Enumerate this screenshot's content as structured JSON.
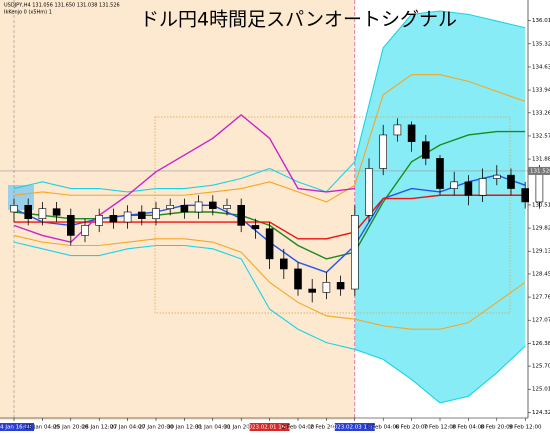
{
  "chart_data": {
    "type": "candlestick",
    "title": "ドル円4時間足スパンオートシグナル",
    "header": [
      "USDJPY,H4 131.056 131.650 131.038 131.526",
      "IkKenjo 0 (x5Hm) 1"
    ],
    "categories": [
      "24 Jan 16:00",
      "25 Jan 04:00",
      "25 Jan 20:00",
      "26 Jan 12:00",
      "27 Jan 04:00",
      "27 Jan 20:00",
      "30 Jan 12:00",
      "31 Jan 04:00",
      "31 Jan 20:00",
      "2023.02.01 16:00",
      "2 Feb 04:00",
      "2 Feb 20:00",
      "2023.02.03 16:00",
      "6 Feb 04:00",
      "6 Feb 20:00",
      "7 Feb 12:00",
      "8 Feb 04:00",
      "8 Feb 20:00",
      "9 Feb 12:00"
    ],
    "category_label_colors": [
      "#2a3fd6",
      null,
      null,
      null,
      null,
      null,
      null,
      null,
      null,
      "#d62a2a",
      null,
      null,
      "#2a3fd6",
      null,
      null,
      null,
      null,
      null,
      null
    ],
    "candles": {
      "open": [
        130.3,
        130.5,
        130.1,
        130.4,
        130.2,
        129.6,
        129.9,
        130.2,
        130.0,
        130.3,
        130.1,
        130.4,
        130.5,
        130.3,
        130.6,
        130.4,
        130.5,
        129.9,
        129.8,
        128.9,
        128.6,
        128.0,
        127.9,
        128.2,
        128.0,
        130.2,
        131.6,
        132.6,
        132.9,
        132.4,
        131.9,
        131.0,
        131.2,
        130.8,
        131.3,
        131.4,
        131.0,
        130.6
      ],
      "high": [
        130.7,
        130.7,
        130.6,
        130.6,
        130.4,
        130.1,
        130.4,
        130.4,
        130.5,
        130.5,
        130.6,
        130.7,
        130.7,
        130.8,
        130.8,
        130.7,
        130.7,
        130.1,
        130.0,
        129.2,
        128.8,
        128.3,
        128.5,
        128.4,
        130.5,
        131.9,
        132.9,
        133.1,
        133.0,
        132.6,
        132.0,
        131.5,
        131.4,
        131.6,
        131.7,
        131.6,
        131.2,
        131.7
      ],
      "low": [
        130.0,
        129.9,
        129.9,
        130.0,
        129.3,
        129.4,
        129.7,
        129.8,
        129.8,
        129.9,
        129.9,
        130.2,
        130.1,
        130.1,
        130.2,
        130.2,
        129.7,
        129.5,
        128.6,
        128.3,
        127.8,
        127.6,
        127.7,
        127.8,
        127.8,
        130.0,
        131.4,
        132.4,
        132.1,
        131.7,
        130.8,
        130.8,
        130.5,
        130.6,
        131.1,
        130.8,
        130.4,
        130.4
      ],
      "close": [
        130.5,
        130.1,
        130.4,
        130.2,
        129.6,
        129.9,
        130.2,
        130.0,
        130.3,
        130.1,
        130.4,
        130.5,
        130.3,
        130.6,
        130.4,
        130.5,
        129.9,
        129.8,
        128.9,
        128.6,
        128.0,
        127.9,
        128.2,
        128.0,
        130.2,
        131.6,
        132.6,
        132.9,
        132.4,
        131.9,
        131.0,
        131.2,
        130.8,
        131.3,
        131.4,
        131.0,
        130.6,
        131.5
      ]
    },
    "series": [
      {
        "name": "upper-3s",
        "color": "#19d3e6",
        "values": [
          131.0,
          131.2,
          131.0,
          131.0,
          130.9,
          131.0,
          131.0,
          131.1,
          131.3,
          131.6,
          131.2,
          130.9,
          131.8,
          135.2,
          136.2,
          136.3,
          136.2,
          136.0,
          135.8
        ]
      },
      {
        "name": "lower-3s",
        "color": "#19d3e6",
        "values": [
          129.4,
          129.2,
          129.0,
          129.0,
          129.2,
          129.3,
          129.3,
          129.2,
          128.9,
          127.4,
          126.8,
          126.4,
          126.2,
          125.9,
          125.3,
          124.6,
          124.8,
          125.5,
          126.3
        ]
      },
      {
        "name": "upper-2s",
        "color": "#f5a623",
        "values": [
          130.8,
          130.9,
          130.8,
          130.8,
          130.8,
          130.8,
          130.8,
          130.9,
          131.0,
          131.2,
          130.9,
          130.6,
          131.1,
          133.8,
          134.4,
          134.4,
          134.2,
          133.9,
          133.6
        ]
      },
      {
        "name": "lower-2s",
        "color": "#f5a623",
        "values": [
          129.6,
          129.4,
          129.3,
          129.3,
          129.4,
          129.5,
          129.5,
          129.4,
          129.1,
          128.2,
          127.6,
          127.2,
          127.1,
          126.9,
          126.8,
          126.8,
          127.0,
          127.6,
          128.2
        ]
      },
      {
        "name": "middle",
        "color": "#1b8a1b",
        "values": [
          130.3,
          130.2,
          130.1,
          130.1,
          130.2,
          130.2,
          130.3,
          130.3,
          130.2,
          129.9,
          129.3,
          128.9,
          129.1,
          130.6,
          131.8,
          132.3,
          132.6,
          132.7,
          132.7
        ]
      },
      {
        "name": "fast",
        "color": "#2255ee",
        "values": [
          130.4,
          130.0,
          129.9,
          130.1,
          130.2,
          130.3,
          130.5,
          130.5,
          130.1,
          129.4,
          128.8,
          128.5,
          129.3,
          130.7,
          131.0,
          130.9,
          131.2,
          131.4,
          131.1
        ]
      },
      {
        "name": "base",
        "color": "#ee1111",
        "values": [
          130.0,
          130.0,
          130.0,
          130.0,
          130.0,
          130.0,
          130.0,
          130.0,
          130.0,
          130.0,
          129.5,
          129.5,
          129.7,
          130.7,
          130.7,
          130.8,
          130.8,
          130.8,
          130.8
        ]
      },
      {
        "name": "lag",
        "color": "#cc22cc",
        "values": [
          129.9,
          129.6,
          129.4,
          130.2,
          130.8,
          131.5,
          132.0,
          132.5,
          133.2,
          132.5,
          131.0,
          130.9,
          131.0,
          null,
          null,
          null,
          null,
          null,
          null
        ]
      }
    ],
    "last_price": 131.526,
    "ylim": [
      124.15,
      136.39
    ],
    "yticks": [
      {
        "value": 136.01,
        "label": "136.010"
      },
      {
        "value": 135.32,
        "label": "135.320"
      },
      {
        "value": 134.63,
        "label": "134.630"
      },
      {
        "value": 133.94,
        "label": "133.940"
      },
      {
        "value": 133.26,
        "label": "133.260"
      },
      {
        "value": 132.57,
        "label": "132.570"
      },
      {
        "value": 131.88,
        "label": "131.880"
      },
      {
        "value": 130.51,
        "label": "130.510"
      },
      {
        "value": 129.82,
        "label": "129.820"
      },
      {
        "value": 129.13,
        "label": "129.130"
      },
      {
        "value": 128.45,
        "label": "128.450"
      },
      {
        "value": 127.76,
        "label": "127.760"
      },
      {
        "value": 127.07,
        "label": "127.070"
      },
      {
        "value": 126.38,
        "label": "126.380"
      },
      {
        "value": 125.7,
        "label": "125.700"
      },
      {
        "value": 125.01,
        "label": "125.010"
      },
      {
        "value": 124.32,
        "label": "124.320"
      }
    ]
  }
}
